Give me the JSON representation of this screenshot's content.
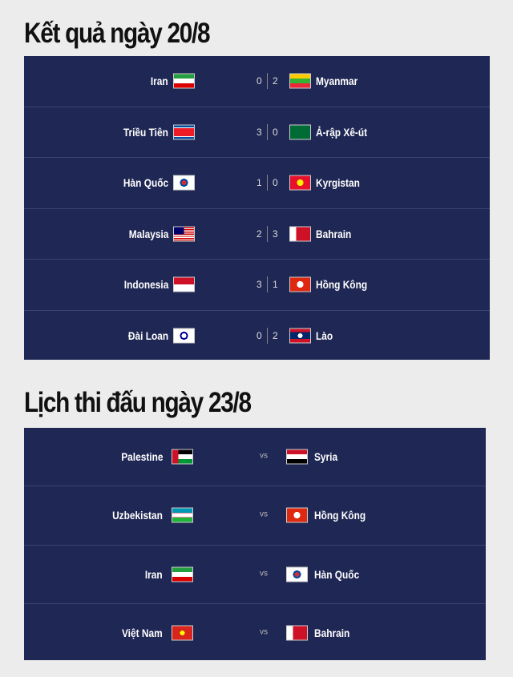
{
  "results": {
    "title": "Kết quả ngày 20/8",
    "matches": [
      {
        "home": "Iran",
        "home_flag": "iran",
        "home_score": "0",
        "away_score": "2",
        "away": "Myanmar",
        "away_flag": "myanmar"
      },
      {
        "home": "Triều Tiên",
        "home_flag": "north-korea",
        "home_score": "3",
        "away_score": "0",
        "away": "Ả-rập Xê-út",
        "away_flag": "saudi-arabia"
      },
      {
        "home": "Hàn Quốc",
        "home_flag": "south-korea",
        "home_score": "1",
        "away_score": "0",
        "away": "Kyrgistan",
        "away_flag": "kyrgyzstan"
      },
      {
        "home": "Malaysia",
        "home_flag": "malaysia",
        "home_score": "2",
        "away_score": "3",
        "away": "Bahrain",
        "away_flag": "bahrain"
      },
      {
        "home": "Indonesia",
        "home_flag": "indonesia",
        "home_score": "3",
        "away_score": "1",
        "away": "Hồng Kông",
        "away_flag": "hong-kong"
      },
      {
        "home": "Đài Loan",
        "home_flag": "chinese-taipei",
        "home_score": "0",
        "away_score": "2",
        "away": "Lào",
        "away_flag": "laos"
      }
    ]
  },
  "schedule": {
    "title": "Lịch thi đấu ngày 23/8",
    "vs_label": "vs",
    "matches": [
      {
        "home": "Palestine",
        "home_flag": "palestine",
        "away": "Syria",
        "away_flag": "syria"
      },
      {
        "home": "Uzbekistan",
        "home_flag": "uzbekistan",
        "away": "Hồng Kông",
        "away_flag": "hong-kong"
      },
      {
        "home": "Iran",
        "home_flag": "iran",
        "away": "Hàn Quốc",
        "away_flag": "south-korea"
      },
      {
        "home": "Việt Nam",
        "home_flag": "vietnam",
        "away": "Bahrain",
        "away_flag": "bahrain"
      }
    ]
  },
  "colors": {
    "panel": "#1f2754",
    "background": "#ececec"
  }
}
